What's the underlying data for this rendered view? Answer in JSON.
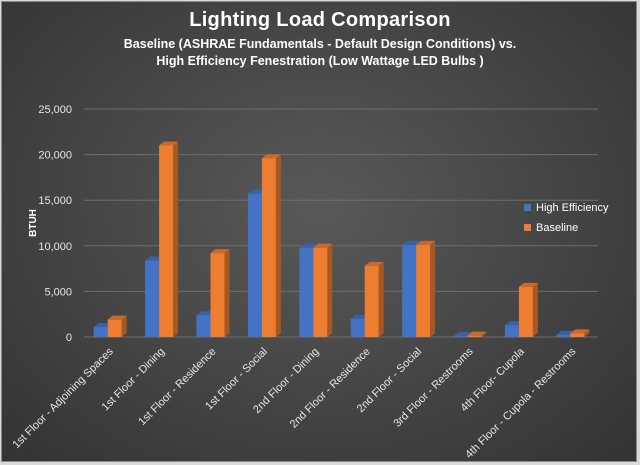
{
  "chart_data": {
    "type": "bar",
    "title": "Lighting Load Comparison",
    "subtitle_line1": "Baseline (ASHRAE Fundamentals - Default Design Conditions) vs.",
    "subtitle_line2": "High Efficiency Fenestration (Low Wattage LED Bulbs )",
    "ylabel": "BTUH",
    "xlabel": "",
    "ylim": [
      0,
      25000
    ],
    "yticks": [
      0,
      5000,
      10000,
      15000,
      20000,
      25000
    ],
    "ytick_labels": [
      "0",
      "5,000",
      "10,000",
      "15,000",
      "20,000",
      "25,000"
    ],
    "grid": true,
    "legend_position": "right",
    "categories": [
      "1st Floor - Adjoining Spaces",
      "1st Floor - Dining",
      "1st Floor - Residence",
      "1st Floor - Social",
      "2nd Floor - Dining",
      "2nd Floor - Residence",
      "2nd Floor - Social",
      "3rd Floor - Restrooms",
      "4th Floor- Cupola",
      "4th Floor - Cupola - Restrooms"
    ],
    "series": [
      {
        "name": "High Efficiency",
        "color": "#4472c4",
        "values": [
          1100,
          8400,
          2400,
          15700,
          9800,
          2000,
          10100,
          100,
          1300,
          250
        ]
      },
      {
        "name": "Baseline",
        "color": "#ed7d31",
        "values": [
          1900,
          21000,
          9200,
          19600,
          9800,
          7800,
          10100,
          150,
          5500,
          400
        ]
      }
    ]
  }
}
